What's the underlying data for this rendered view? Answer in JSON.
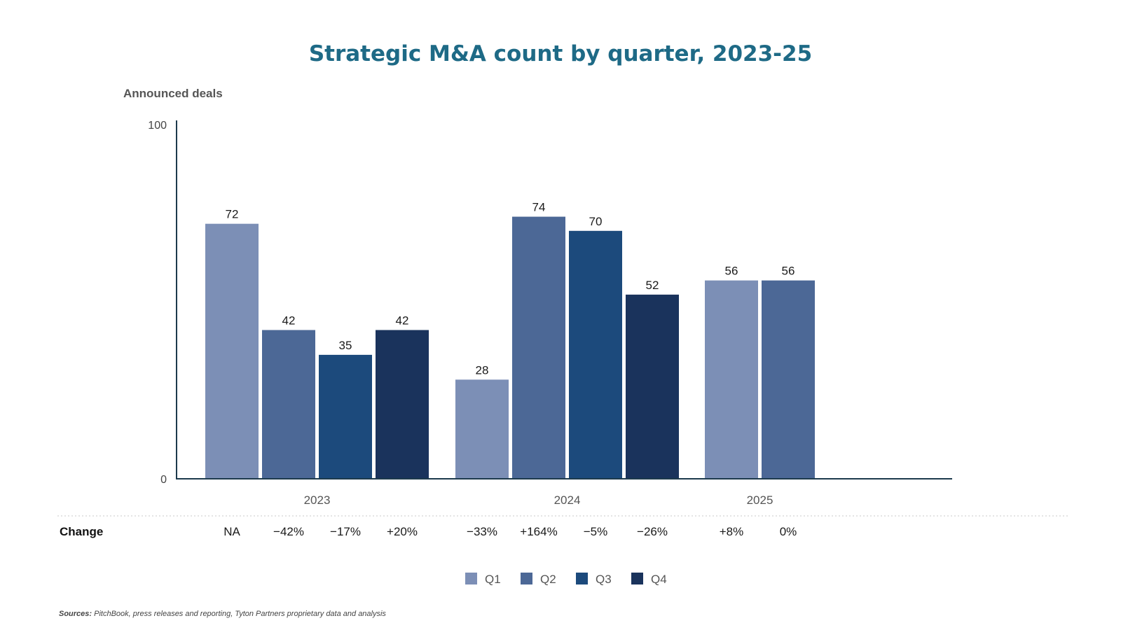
{
  "chart_data": {
    "type": "bar",
    "title": "Strategic M&A count by quarter, 2023-25",
    "ylabel": "Announced deals",
    "ylim": [
      0,
      100
    ],
    "yticks": [
      "0",
      "100"
    ],
    "groups": [
      {
        "label": "2023",
        "bars": [
          {
            "quarter": "Q1",
            "value": 72,
            "change": "NA"
          },
          {
            "quarter": "Q2",
            "value": 42,
            "change": "−42%"
          },
          {
            "quarter": "Q3",
            "value": 35,
            "change": "−17%"
          },
          {
            "quarter": "Q4",
            "value": 42,
            "change": "+20%"
          }
        ]
      },
      {
        "label": "2024",
        "bars": [
          {
            "quarter": "Q1",
            "value": 28,
            "change": "−33%"
          },
          {
            "quarter": "Q2",
            "value": 74,
            "change": "+164%"
          },
          {
            "quarter": "Q3",
            "value": 70,
            "change": "−5%"
          },
          {
            "quarter": "Q4",
            "value": 52,
            "change": "−26%"
          }
        ]
      },
      {
        "label": "2025",
        "bars": [
          {
            "quarter": "Q1",
            "value": 56,
            "change": "+8%"
          },
          {
            "quarter": "Q2",
            "value": 56,
            "change": "0%"
          }
        ]
      }
    ],
    "change_row_label": "Change",
    "legend": [
      {
        "name": "Q1",
        "color": "#7c8fb6"
      },
      {
        "name": "Q2",
        "color": "#4c6896"
      },
      {
        "name": "Q3",
        "color": "#1c4a7c"
      },
      {
        "name": "Q4",
        "color": "#1a335c"
      }
    ],
    "legend_position": "bottom-center",
    "grid": false,
    "title_color": "#1e6a86",
    "axis_color": "#1d3a4c"
  },
  "sources": {
    "label": "Sources:",
    "text": "PitchBook, press releases and reporting, Tyton Partners proprietary data and analysis"
  }
}
